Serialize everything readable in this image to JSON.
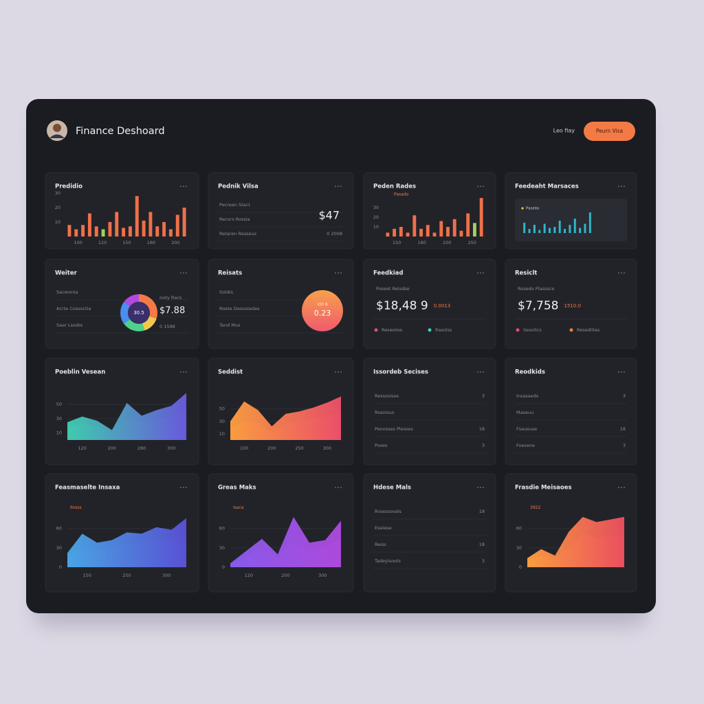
{
  "header": {
    "title": "Finance Deshoard",
    "user": "Leo fiay",
    "button": "Peurn Visa"
  },
  "cards": [
    {
      "title": "Predidio",
      "chart": {
        "type": "bar",
        "values": [
          8,
          5,
          8,
          16,
          7,
          5,
          10,
          17,
          6,
          7,
          28,
          11,
          17,
          7,
          10,
          5,
          15,
          20
        ],
        "colors": [
          "#f07048",
          "#f07048",
          "#f07048",
          "#f07048",
          "#f07048",
          "#9fd45a",
          "#f07048",
          "#f07048",
          "#f07048",
          "#f07048",
          "#f07048",
          "#f07048",
          "#f07048",
          "#f07048",
          "#f07048",
          "#f07048",
          "#f07048",
          "#f07048"
        ],
        "ylim": [
          0,
          30
        ],
        "yticks": [
          10,
          20,
          30
        ],
        "x_labels": [
          "100",
          "120",
          "150",
          "180",
          "200"
        ]
      }
    },
    {
      "title": "Pednik Vilsa",
      "rows": [
        {
          "label": "Pecrean Stact"
        },
        {
          "label": "Recors Rossia"
        },
        {
          "label": "Retaren Resseus",
          "value": "0 2008"
        }
      ],
      "big": "$47"
    },
    {
      "title": "Peden Rades",
      "chart": {
        "type": "bar",
        "note": "Pasado",
        "values": [
          4,
          8,
          10,
          4,
          22,
          8,
          12,
          4,
          16,
          10,
          18,
          6,
          24,
          14,
          40
        ],
        "colors": [
          "#f07048",
          "#f07048",
          "#f07048",
          "#f07048",
          "#f07048",
          "#f07048",
          "#f07048",
          "#f07048",
          "#f07048",
          "#f07048",
          "#f07048",
          "#f07048",
          "#f07048",
          "#9fd45a",
          "#f07048"
        ],
        "ylim": [
          0,
          45
        ],
        "yticks": [
          10,
          20,
          30
        ],
        "x_labels": [
          "150",
          "180",
          "200",
          "250"
        ]
      }
    },
    {
      "title": "Feedeaht Marsaces",
      "chart": {
        "type": "minibar",
        "note": "Pasello",
        "values": [
          10,
          4,
          8,
          3,
          9,
          5,
          6,
          12,
          4,
          8,
          14,
          5,
          9,
          20
        ],
        "color": "#2fb8d0",
        "ylim": [
          0,
          20
        ]
      }
    },
    {
      "title": "Weiter",
      "rows": [
        {
          "label": "Sacwonta"
        },
        {
          "label": "Acrte Cossoctia"
        },
        {
          "label": "Saar Lsssbs"
        }
      ],
      "donut": {
        "center": "30.5",
        "segments": [
          {
            "value": 30,
            "color": "#f47a45"
          },
          {
            "value": 15,
            "color": "#f2c94c"
          },
          {
            "value": 20,
            "color": "#4fd18b"
          },
          {
            "value": 20,
            "color": "#4a8ef0"
          },
          {
            "value": 15,
            "color": "#b04ae0"
          }
        ],
        "caption": "Ivsly Racs",
        "value": "$7.88",
        "note": "0 1598"
      }
    },
    {
      "title": "Reisats",
      "rows": [
        {
          "label": "Sotdis"
        },
        {
          "label": "Roete Desoolades"
        },
        {
          "label": "Tand Mus"
        }
      ],
      "circle": {
        "caption": "Idd 8",
        "value": "0.23"
      }
    },
    {
      "title": "Feedkiad",
      "kpi": {
        "subtitle": "Poseet Relsdse",
        "value": "$18,48 9",
        "note": "0.0013"
      },
      "legend": [
        {
          "label": "Reswoles",
          "color": "#e0506a"
        },
        {
          "label": "Rasolss",
          "color": "#3fd0c0"
        }
      ]
    },
    {
      "title": "Resiclt",
      "kpi": {
        "subtitle": "Rosedo Plasssce",
        "value": "$7,758",
        "note": "1510.0"
      },
      "legend": [
        {
          "label": "Sesoitcs",
          "color": "#e0506a"
        },
        {
          "label": "Resedlites",
          "color": "#f47a45"
        }
      ]
    },
    {
      "title": "Poeblin Vesean",
      "chart": {
        "type": "area",
        "series": [
          {
            "gradient": [
              "#3fd0b0",
              "#6a5be0"
            ],
            "values": [
              18,
              22,
              20,
              10,
              30,
              26,
              28,
              32,
              40
            ]
          },
          {
            "gradient": [
              "#3fd0b0",
              "#6a5be0"
            ],
            "values": [
              25,
              33,
              27,
              14,
              52,
              34,
              42,
              48,
              66
            ]
          }
        ],
        "ylim": [
          0,
          70
        ],
        "yticks": [
          10,
          30,
          50
        ],
        "x_labels": [
          "120",
          "200",
          "280",
          "300"
        ],
        "grid": true
      }
    },
    {
      "title": "Seddist",
      "chart": {
        "type": "area",
        "series": [
          {
            "gradient": [
              "#ffa040",
              "#f0506a"
            ],
            "values": [
              18,
              30,
              28,
              12,
              26,
              30,
              34,
              38,
              44
            ]
          },
          {
            "gradient": [
              "#ffa040",
              "#f0506a"
            ],
            "values": [
              30,
              62,
              48,
              22,
              42,
              46,
              52,
              60,
              70
            ]
          }
        ],
        "ylim": [
          0,
          80
        ],
        "yticks": [
          10,
          30,
          50
        ],
        "x_labels": [
          "100",
          "200",
          "250",
          "300"
        ],
        "grid": true
      }
    },
    {
      "title": "Issordeb Secises",
      "rows": [
        {
          "label": "Ressosisse",
          "value": 3
        },
        {
          "label": "Rosoisus"
        },
        {
          "label": "Peoosses Plesses",
          "value": 18
        },
        {
          "label": "Poses",
          "value": 3
        }
      ]
    },
    {
      "title": "Reodkids",
      "rows": [
        {
          "label": "Insasaeds",
          "value": 3
        },
        {
          "label": "Maseuu"
        },
        {
          "label": "Fsaususe",
          "value": 18
        },
        {
          "label": "Foesene",
          "value": 3
        }
      ]
    },
    {
      "title": "Feasmaselte Insaxa",
      "chart": {
        "type": "area",
        "note": "Ilosss",
        "series": [
          {
            "gradient": [
              "#4aa8e8",
              "#5a52d8"
            ],
            "values": [
              15,
              30,
              26,
              30,
              36,
              38,
              44,
              42,
              50
            ]
          },
          {
            "gradient": [
              "#4aa8e8",
              "#5a52d8"
            ],
            "values": [
              22,
              52,
              38,
              42,
              54,
              52,
              62,
              58,
              76
            ]
          }
        ],
        "ylim": [
          0,
          90
        ],
        "yticks": [
          0,
          30,
          60
        ],
        "x_labels": [
          "150",
          "250",
          "300"
        ],
        "grid": true
      }
    },
    {
      "title": "Greas Maks",
      "chart": {
        "type": "area",
        "note": "Isaca",
        "series": [
          {
            "gradient": [
              "#8a5cf0",
              "#b04ae0"
            ],
            "values": [
              4,
              15,
              28,
              14,
              40,
              26,
              30,
              44
            ]
          },
          {
            "gradient": [
              "#8a5cf0",
              "#b04ae0"
            ],
            "values": [
              6,
              25,
              44,
              20,
              78,
              38,
              42,
              72
            ]
          }
        ],
        "ylim": [
          0,
          90
        ],
        "yticks": [
          0,
          30,
          60
        ],
        "x_labels": [
          "120",
          "200",
          "300"
        ],
        "grid": true
      }
    },
    {
      "title": "Hdese Mals",
      "rows": [
        {
          "label": "Rosessosels",
          "value": 18
        },
        {
          "label": "Eseiese"
        },
        {
          "label": "Resis",
          "value": 18
        },
        {
          "label": "Tadeylsoots",
          "value": 3
        }
      ]
    },
    {
      "title": "Frasdie Meisaoes",
      "chart": {
        "type": "area",
        "note": "3922",
        "series": [
          {
            "gradient": [
              "#ffa040",
              "#f05060"
            ],
            "values": [
              10,
              18,
              14,
              30,
              52,
              46,
              48,
              50
            ]
          },
          {
            "gradient": [
              "#ffa040",
              "#f05060"
            ],
            "values": [
              14,
              28,
              18,
              55,
              78,
              70,
              74,
              78
            ]
          }
        ],
        "ylim": [
          0,
          90
        ],
        "yticks": [
          0,
          30,
          60
        ],
        "grid": true
      }
    }
  ]
}
